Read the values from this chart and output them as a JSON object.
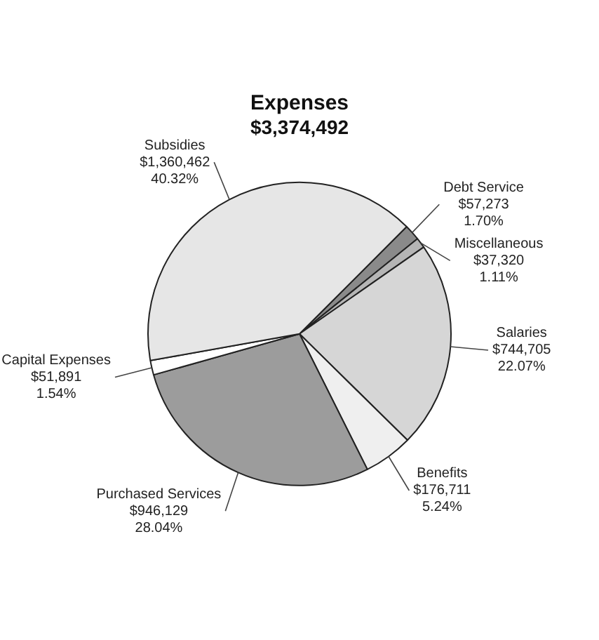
{
  "chart_data": {
    "type": "pie",
    "title": "Expenses",
    "subtitle": "$3,374,492",
    "categories": [
      "Debt Service",
      "Miscellaneous",
      "Salaries",
      "Benefits",
      "Purchased Services",
      "Capital Expenses",
      "Subsidies"
    ],
    "values": [
      57273,
      37320,
      744705,
      176711,
      946129,
      51891,
      1360462
    ],
    "value_labels": [
      "$57,273\n1.70%",
      "$37,320\n1.11%",
      "$744,705\n22.07%",
      "$176,711\n5.24%",
      "$946,129\n28.04%",
      "$51,891\n1.54%",
      "$1,360,462\n40.32%"
    ],
    "colors": [
      "#8a8a8a",
      "#b5b5b5",
      "#d6d6d6",
      "#efefef",
      "#9c9c9c",
      "#ffffff",
      "#e6e6e6"
    ],
    "legend": false
  }
}
